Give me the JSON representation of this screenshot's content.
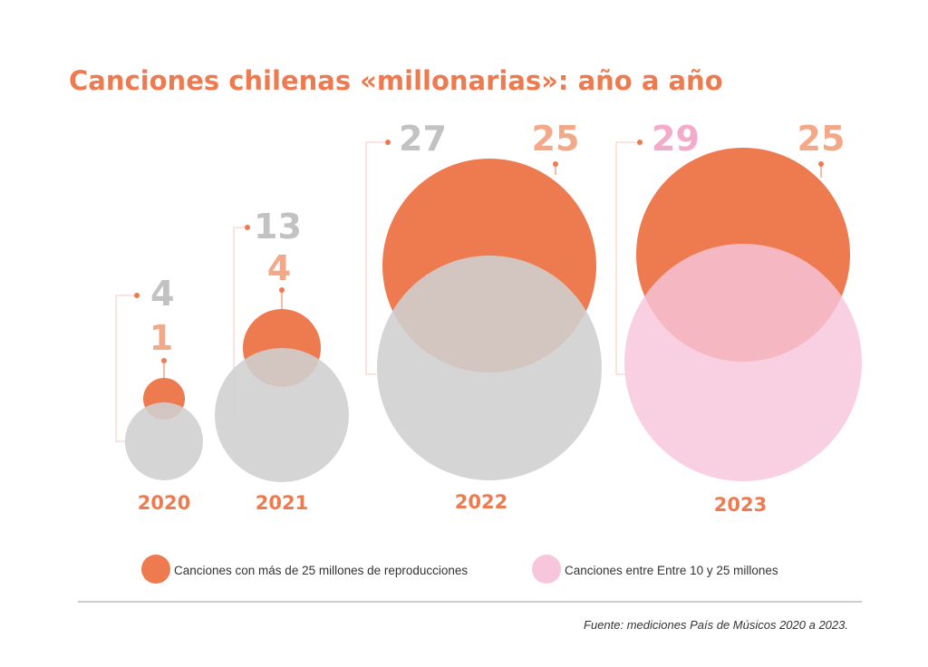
{
  "colors": {
    "accent": "#ee7a50",
    "accent_light": "#f3a888",
    "gray": "#cfcfcf",
    "gray_text": "#c2c2c2",
    "pink": "#f7c6dc",
    "pink_text": "#f2abca",
    "connector": "#f4c8c0",
    "rule": "#9a9a9a"
  },
  "chart_data": {
    "type": "bubble",
    "title": "Canciones chilenas «millonarias»: año a año",
    "years": [
      {
        "year": "2020",
        "over25": "1",
        "total": "4",
        "total_color": "gray"
      },
      {
        "year": "2021",
        "over25": "4",
        "total": "13",
        "total_color": "gray"
      },
      {
        "year": "2022",
        "over25": "25",
        "total": "27",
        "total_color": "gray"
      },
      {
        "year": "2023",
        "over25": "25",
        "total": "29",
        "total_color": "pink"
      }
    ],
    "legend": [
      {
        "label": "Canciones con más de 25 millones de reproducciones",
        "color": "accent"
      },
      {
        "label": "Canciones entre Entre 10 y 25 millones",
        "color": "pink"
      }
    ],
    "source": "Fuente: mediciones País de Músicos 2020 a 2023."
  }
}
